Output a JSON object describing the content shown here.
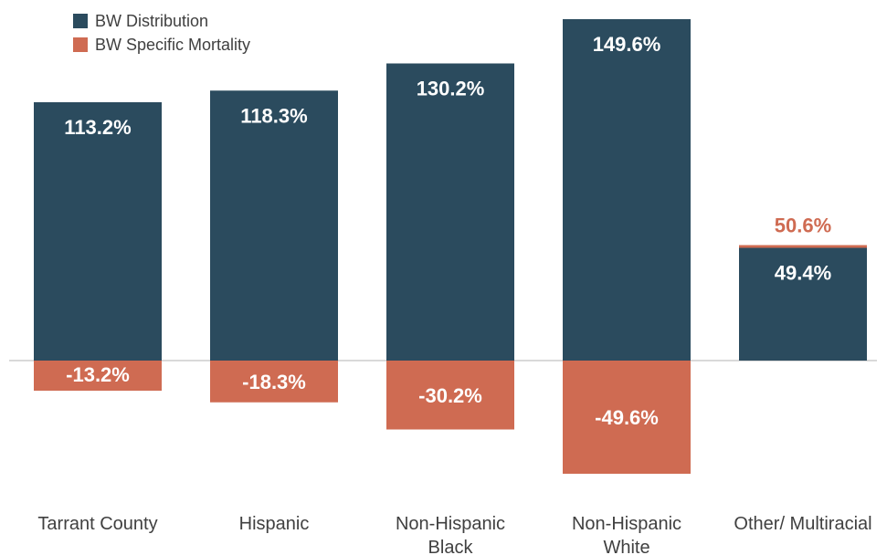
{
  "chart_data": {
    "type": "bar",
    "stacked": true,
    "categories": [
      "Tarrant County",
      "Hispanic",
      "Non-Hispanic Black",
      "Non-Hispanic White",
      "Other/ Multiracial"
    ],
    "category_lines": [
      [
        "Tarrant County"
      ],
      [
        "Hispanic"
      ],
      [
        "Non-Hispanic",
        "Black"
      ],
      [
        "Non-Hispanic",
        "White"
      ],
      [
        "Other/ Multiracial"
      ]
    ],
    "series": [
      {
        "name": "BW Distribution",
        "values": [
          113.2,
          118.3,
          130.2,
          149.6,
          49.4
        ],
        "labels": [
          "113.2%",
          "118.3%",
          "130.2%",
          "149.6%",
          "49.4%"
        ]
      },
      {
        "name": "BW Specific Mortality",
        "values": [
          -13.2,
          -18.3,
          -30.2,
          -49.6,
          50.6
        ],
        "labels": [
          "-13.2%",
          "-18.3%",
          "-30.2%",
          "-49.6%",
          "50.6%"
        ]
      }
    ],
    "ylim": [
      -50,
      150
    ],
    "legend_position": "top-left",
    "grid": false,
    "colors": {
      "distribution": "#2b4b5e",
      "mortality": "#cf6b52",
      "zero_line": "#d9d9d9"
    }
  }
}
